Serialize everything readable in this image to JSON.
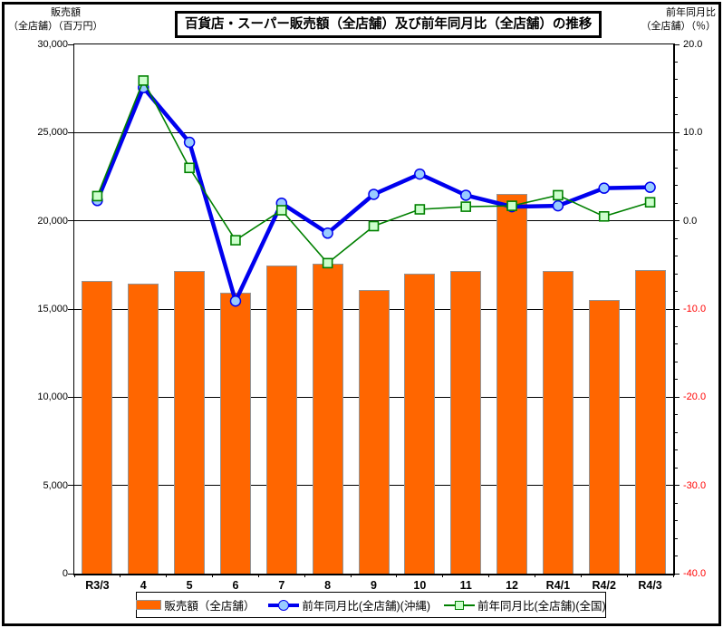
{
  "title": "百貨店・スーパー販売額（全店舗）及び前年同月比（全店舗）の推移",
  "left_axis": {
    "title_line1": "販売額",
    "title_line2": "（全店舗）（百万円）",
    "tick_labels": [
      "30,000",
      "25,000",
      "20,000",
      "15,000",
      "10,000",
      "5,000",
      "0"
    ]
  },
  "right_axis": {
    "title_line1": "前年同月比",
    "title_line2": "（全店舗）（％）",
    "tick_labels": [
      "20.0",
      "10.0",
      "0.0",
      "-10.0",
      "-20.0",
      "-30.0",
      "-40.0"
    ]
  },
  "legend": {
    "items": [
      {
        "label": "販売額（全店舗）",
        "type": "bar"
      },
      {
        "label": "前年同月比(全店舗)(沖縄)",
        "type": "line-circle"
      },
      {
        "label": "前年同月比(全店舗)(全国)",
        "type": "line-square"
      }
    ],
    "position": "bottom"
  },
  "colors": {
    "bar_fill": "#FF6600",
    "bar_border": "#949494",
    "okinawa_line": "#0000EE",
    "okinawa_marker_fill": "#99CCFF",
    "national_line": "#008000",
    "national_marker_fill": "#CCFFCC",
    "negative_tick_label": "#FF0000",
    "gridline": "#000000"
  },
  "chart_data": {
    "type": "combo-bar-line",
    "title": "百貨店・スーパー販売額（全店舗）及び前年同月比（全店舗）の推移",
    "categories": [
      "R3/3",
      "4",
      "5",
      "6",
      "7",
      "8",
      "9",
      "10",
      "11",
      "12",
      "R4/1",
      "R4/2",
      "R4/3"
    ],
    "grid": true,
    "legend_position": "bottom",
    "left_axis_label": "販売額（全店舗）（百万円）",
    "right_axis_label": "前年同月比（全店舗）（％）",
    "left_ylim": [
      0,
      30000
    ],
    "right_ylim": [
      -40,
      20
    ],
    "left_ticks": [
      30000,
      25000,
      20000,
      15000,
      10000,
      5000,
      0
    ],
    "right_major_ticks": [
      20,
      10,
      0,
      -10,
      -20,
      -30,
      -40
    ],
    "right_minor_step": 2,
    "bar_series": {
      "name": "販売額（全店舗）",
      "axis": "left",
      "values": [
        16600,
        16450,
        17150,
        15950,
        17450,
        17550,
        16100,
        17000,
        17150,
        21500,
        17150,
        15500,
        17200
      ]
    },
    "line_series": [
      {
        "name": "前年同月比(全店舗)(沖縄)",
        "axis": "right",
        "marker": "circle",
        "values": [
          2.3,
          15.1,
          8.9,
          -9.1,
          2.0,
          -1.4,
          3.0,
          5.3,
          2.9,
          1.6,
          1.7,
          3.7,
          3.8
        ]
      },
      {
        "name": "前年同月比(全店舗)(全国)",
        "axis": "right",
        "marker": "square",
        "values": [
          2.8,
          15.9,
          6.0,
          -2.2,
          1.2,
          -4.8,
          -0.6,
          1.3,
          1.6,
          1.7,
          2.9,
          0.5,
          2.1
        ]
      }
    ]
  }
}
